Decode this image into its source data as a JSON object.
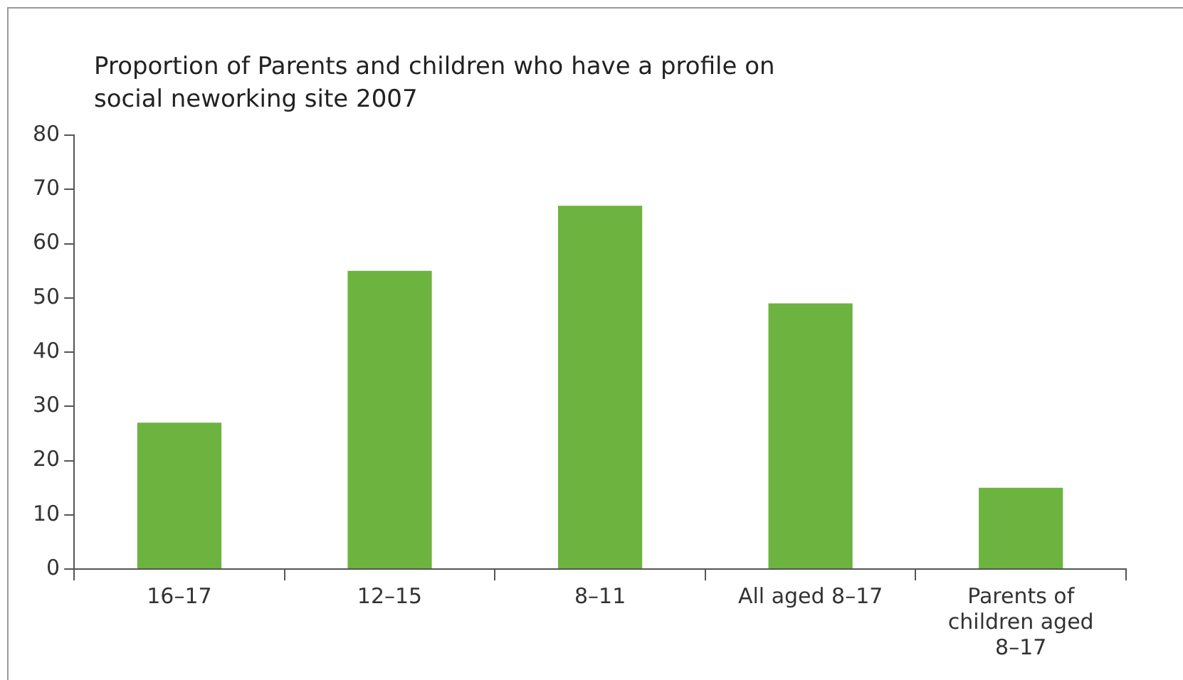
{
  "chart_data": {
    "type": "bar",
    "title": "Proportion of Parents and children who have a profile on social neworking site 2007",
    "categories": [
      "16–17",
      "12–15",
      "8–11",
      "All aged 8–17",
      "Parents of children aged 8–17"
    ],
    "values": [
      27,
      55,
      67,
      49,
      15
    ],
    "color": "#6db33f",
    "ylim": [
      0,
      80
    ],
    "yticks": [
      0,
      10,
      20,
      30,
      40,
      50,
      60,
      70,
      80
    ],
    "grid": false
  }
}
